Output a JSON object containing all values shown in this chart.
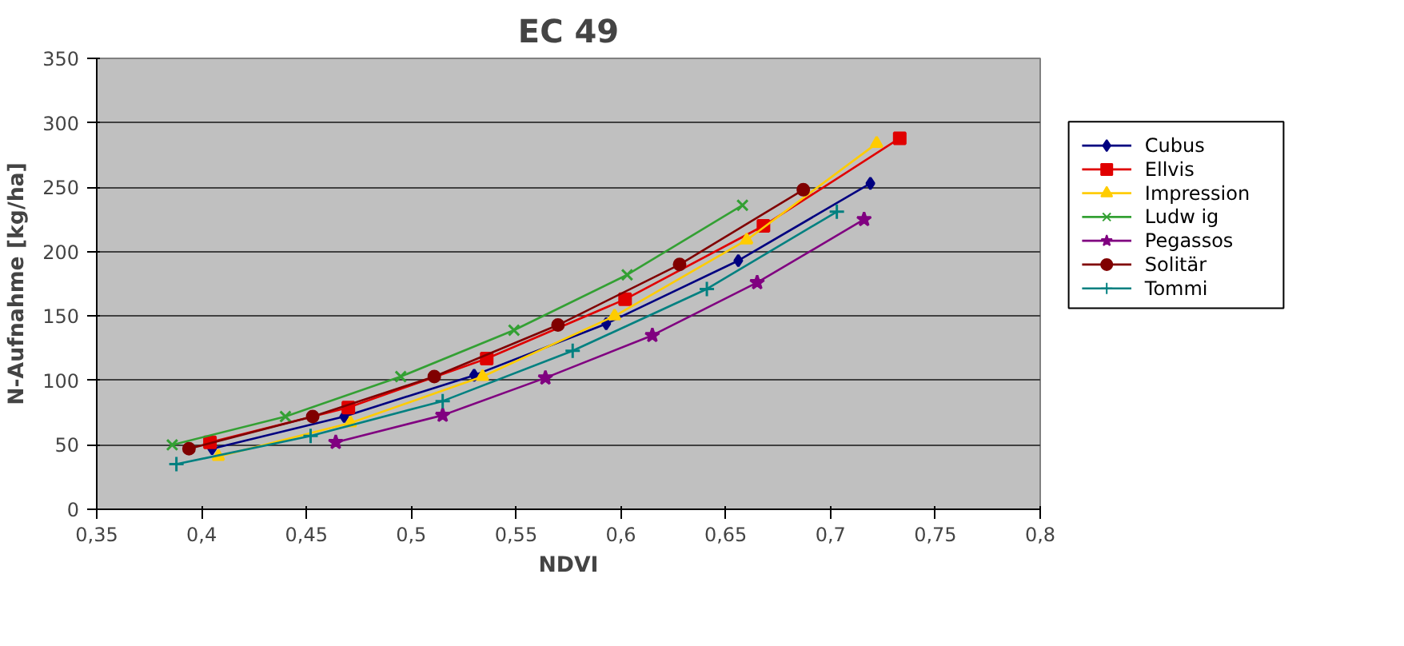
{
  "chart_data": {
    "type": "line",
    "title": "EC 49",
    "xlabel": "NDVI",
    "ylabel": "N-Aufnahme [kg/ha]",
    "xlim": [
      0.35,
      0.8
    ],
    "xticks": [
      {
        "value": 0.35,
        "label": "0,35"
      },
      {
        "value": 0.4,
        "label": "0,4"
      },
      {
        "value": 0.45,
        "label": "0,45"
      },
      {
        "value": 0.5,
        "label": "0,5"
      },
      {
        "value": 0.55,
        "label": "0,55"
      },
      {
        "value": 0.6,
        "label": "0,6"
      },
      {
        "value": 0.65,
        "label": "0,65"
      },
      {
        "value": 0.7,
        "label": "0,7"
      },
      {
        "value": 0.75,
        "label": "0,75"
      },
      {
        "value": 0.8,
        "label": "0,8"
      }
    ],
    "ylim": [
      0,
      350
    ],
    "yticks": [
      0,
      50,
      100,
      150,
      200,
      250,
      300,
      350
    ],
    "grid": "y",
    "legend": "right",
    "series": [
      {
        "name": "Cubus",
        "color": "#000080",
        "marker": "diamond",
        "x": [
          0.405,
          0.468,
          0.53,
          0.593,
          0.656,
          0.719
        ],
        "values": [
          47,
          72,
          104,
          144,
          193,
          253
        ]
      },
      {
        "name": "Ellvis",
        "color": "#e00000",
        "marker": "square",
        "x": [
          0.404,
          0.47,
          0.536,
          0.602,
          0.668,
          0.733
        ],
        "values": [
          52,
          79,
          117,
          163,
          220,
          288
        ]
      },
      {
        "name": "Impression",
        "color": "#ffcc00",
        "marker": "triangle",
        "x": [
          0.408,
          0.471,
          0.534,
          0.597,
          0.66,
          0.722
        ],
        "values": [
          41,
          67,
          103,
          150,
          209,
          284
        ]
      },
      {
        "name": "Ludw ig",
        "color": "#33a033",
        "marker": "cross",
        "x": [
          0.386,
          0.44,
          0.495,
          0.549,
          0.603,
          0.658
        ],
        "values": [
          50,
          72,
          103,
          139,
          182,
          236
        ]
      },
      {
        "name": "Pegassos",
        "color": "#800080",
        "marker": "star",
        "x": [
          0.464,
          0.515,
          0.564,
          0.615,
          0.665,
          0.716
        ],
        "values": [
          52,
          73,
          102,
          135,
          176,
          225
        ]
      },
      {
        "name": "Solitär",
        "color": "#800000",
        "marker": "circle",
        "x": [
          0.394,
          0.453,
          0.511,
          0.57,
          0.628,
          0.687
        ],
        "values": [
          47,
          72,
          103,
          143,
          190,
          248
        ]
      },
      {
        "name": "Tommi",
        "color": "#008080",
        "marker": "plus",
        "x": [
          0.388,
          0.452,
          0.515,
          0.577,
          0.641,
          0.703
        ],
        "values": [
          35,
          57,
          84,
          123,
          171,
          231
        ]
      }
    ]
  }
}
